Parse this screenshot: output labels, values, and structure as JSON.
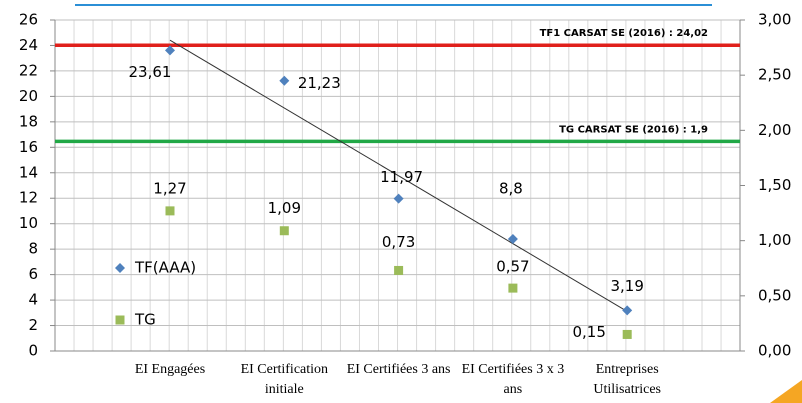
{
  "chart_data": {
    "type": "scatter",
    "categories": [
      "EI Engagées",
      "EI Certification initiale",
      "EI Certifiées 3 ans",
      "EI Certifiées 3 x 3 ans",
      "Entreprises Utilisatrices"
    ],
    "series": [
      {
        "name": "TF(AAA)",
        "color": "#4f81bd",
        "marker": "diamond",
        "values": [
          23.61,
          21.23,
          11.97,
          8.8,
          3.19
        ],
        "value_labels": [
          "23,61",
          "21,23",
          "11,97",
          "8,8",
          "3,19"
        ],
        "trendline": true
      },
      {
        "name": "TG",
        "color": "#9bbb59",
        "marker": "square",
        "axis": "y2",
        "values": [
          1.27,
          1.09,
          0.73,
          0.57,
          0.15
        ],
        "value_labels": [
          "1,27",
          "1,09",
          "0,73",
          "0,57",
          "0,15"
        ]
      }
    ],
    "ylim": [
      0,
      26
    ],
    "yticks": [
      0,
      2,
      4,
      6,
      8,
      10,
      12,
      14,
      16,
      18,
      20,
      22,
      24,
      26
    ],
    "y2lim": [
      0,
      3
    ],
    "y2ticks": [
      {
        "value": 0,
        "label": "0,00"
      },
      {
        "value": 0.5,
        "label": "0,50"
      },
      {
        "value": 1,
        "label": "1,00"
      },
      {
        "value": 1.5,
        "label": "1,50"
      },
      {
        "value": 2,
        "label": "2,00"
      },
      {
        "value": 2.5,
        "label": "2,50"
      },
      {
        "value": 3,
        "label": "3,00"
      }
    ],
    "reference_lines": [
      {
        "label": "TF1 CARSAT SE (2016) : 24,02",
        "value": 24.02,
        "color": "#e0201b"
      },
      {
        "label": "TG CARSAT SE (2016) : 1,9",
        "value": 1.9,
        "axis": "y2",
        "color": "#21a846"
      }
    ],
    "grid": true,
    "legend": "left"
  }
}
